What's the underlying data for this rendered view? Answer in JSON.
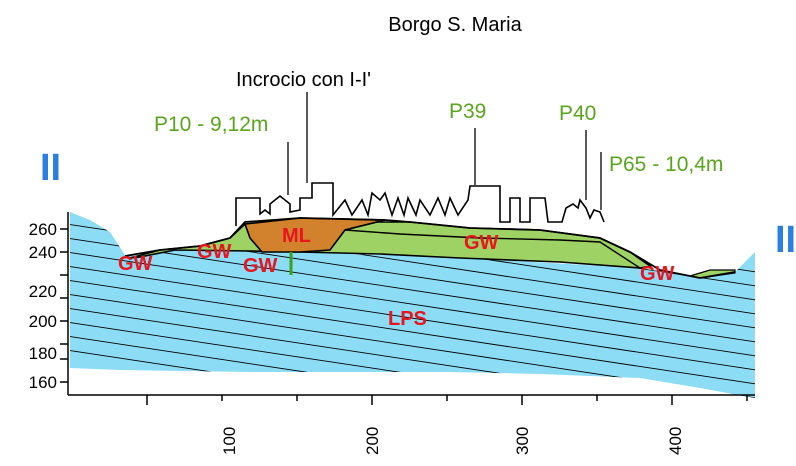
{
  "title": "Borgo S. Maria",
  "intersection_label": "Incrocio con I-I'",
  "section_marks": {
    "left": "II",
    "right": "II"
  },
  "wells": [
    {
      "id": "p10",
      "label": "P10 - 9,12m"
    },
    {
      "id": "p39",
      "label": "P39"
    },
    {
      "id": "p40",
      "label": "P40"
    },
    {
      "id": "p65",
      "label": "P65 - 10,4m"
    }
  ],
  "units": {
    "gw_left": "GW",
    "gw_mid_left": "GW",
    "gw_lower": "GW",
    "gw_center": "GW",
    "gw_right": "GW",
    "ml": "ML",
    "lps": "LPS"
  },
  "y_axis": {
    "ticks": [
      "260",
      "240",
      "220",
      "200",
      "180",
      "160"
    ]
  },
  "x_axis": {
    "ticks": [
      "100",
      "200",
      "300",
      "400"
    ]
  },
  "colors": {
    "lps": "#8cdcf5",
    "gw": "#9ed264",
    "ml": "#d2822d",
    "well_text": "#5aa51e",
    "unit_text": "#e8141e",
    "section_mark": "#2a7fe0"
  }
}
